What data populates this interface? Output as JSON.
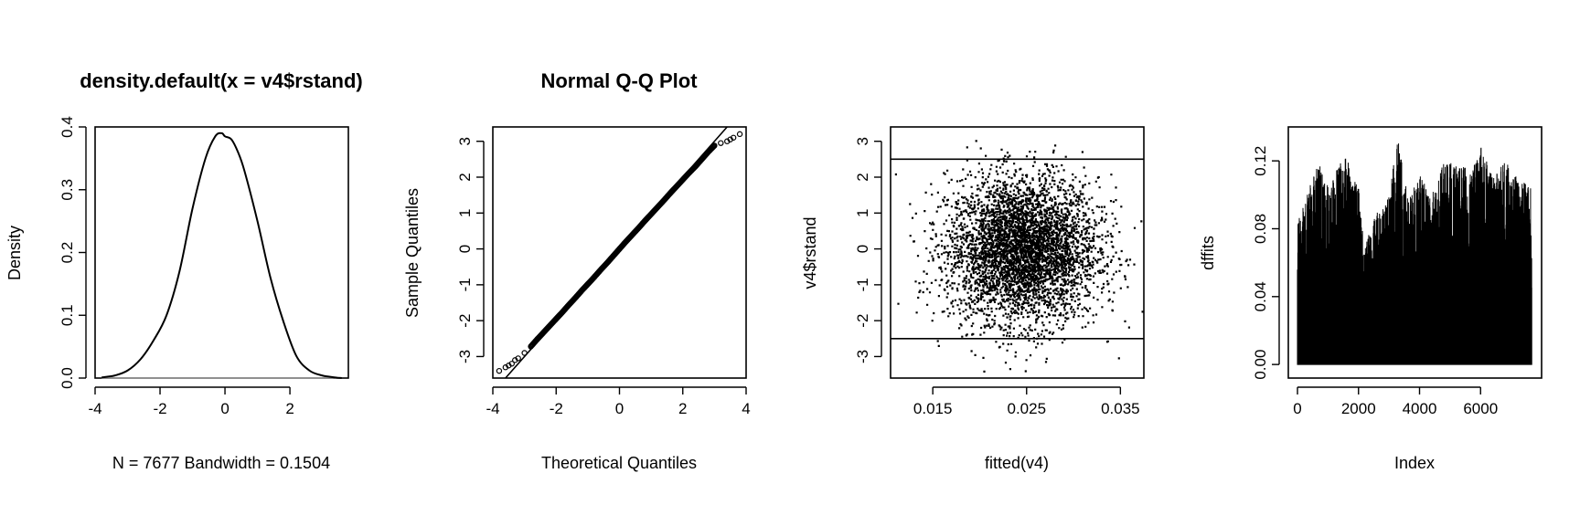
{
  "chart_data": [
    {
      "type": "line",
      "title": "density.default(x = v4$rstand)",
      "xlabel": "N = 7677   Bandwidth = 0.1504",
      "ylabel": "Density",
      "xlim": [
        -4.0,
        3.8
      ],
      "ylim": [
        0.0,
        0.4
      ],
      "x_ticks": [
        "-4",
        "-2",
        "0",
        "2"
      ],
      "y_ticks": [
        "0.0",
        "0.1",
        "0.2",
        "0.3",
        "0.4"
      ],
      "x": [
        -3.8,
        -3.4,
        -3.0,
        -2.6,
        -2.2,
        -1.8,
        -1.4,
        -1.0,
        -0.6,
        -0.3,
        -0.1,
        0.0,
        0.2,
        0.4,
        0.6,
        1.0,
        1.4,
        1.8,
        2.2,
        2.6,
        3.0,
        3.4,
        3.6
      ],
      "y": [
        0.001,
        0.004,
        0.012,
        0.03,
        0.06,
        0.1,
        0.17,
        0.27,
        0.35,
        0.385,
        0.39,
        0.385,
        0.38,
        0.36,
        0.33,
        0.25,
        0.16,
        0.09,
        0.035,
        0.012,
        0.004,
        0.001,
        0.0
      ],
      "grid": false
    },
    {
      "type": "scatter",
      "title": "Normal Q-Q Plot",
      "xlabel": "Theoretical Quantiles",
      "ylabel": "Sample Quantiles",
      "xlim": [
        -4.0,
        4.0
      ],
      "ylim": [
        -3.6,
        3.4
      ],
      "x_ticks": [
        "-4",
        "-2",
        "0",
        "2",
        "4"
      ],
      "y_ticks": [
        "-3",
        "-2",
        "-1",
        "0",
        "1",
        "2",
        "3"
      ],
      "reference_line": {
        "slope": 1.0,
        "intercept": 0.0
      },
      "x": [
        -3.8,
        -3.6,
        -3.5,
        -3.4,
        -3.3,
        -3.2,
        -3.0,
        -2.8,
        -2.6,
        -2.4,
        -2.2,
        -2.0,
        -1.8,
        -1.6,
        -1.4,
        -1.2,
        -1.0,
        -0.8,
        -0.6,
        -0.4,
        -0.2,
        0.0,
        0.2,
        0.4,
        0.6,
        0.8,
        1.0,
        1.2,
        1.4,
        1.6,
        1.8,
        2.0,
        2.2,
        2.4,
        2.6,
        2.8,
        3.0,
        3.2,
        3.4,
        3.5,
        3.6,
        3.8
      ],
      "y": [
        -3.4,
        -3.3,
        -3.25,
        -3.2,
        -3.1,
        -3.05,
        -2.9,
        -2.72,
        -2.52,
        -2.33,
        -2.14,
        -1.95,
        -1.76,
        -1.56,
        -1.37,
        -1.17,
        -0.98,
        -0.79,
        -0.59,
        -0.4,
        -0.2,
        0.0,
        0.2,
        0.39,
        0.58,
        0.78,
        0.97,
        1.16,
        1.35,
        1.55,
        1.74,
        1.93,
        2.12,
        2.3,
        2.5,
        2.7,
        2.88,
        2.95,
        3.0,
        3.05,
        3.1,
        3.2
      ],
      "grid": false
    },
    {
      "type": "scatter",
      "title": "",
      "xlabel": "fitted(v4)",
      "ylabel": "v4$rstand",
      "xlim": [
        0.0105,
        0.0375
      ],
      "ylim": [
        -3.6,
        3.4
      ],
      "x_ticks": [
        "0.015",
        "0.025",
        "0.035"
      ],
      "y_ticks": [
        "-3",
        "-2",
        "-1",
        "0",
        "1",
        "2",
        "3"
      ],
      "hlines": [
        2.5,
        -2.5
      ],
      "point_cloud": {
        "n": 7677,
        "x_center": 0.0245,
        "x_spread": 0.004,
        "y_center": 0.0,
        "y_spread": 1.0
      },
      "grid": false
    },
    {
      "type": "bar",
      "title": "",
      "xlabel": "Index",
      "ylabel": "dffits",
      "xlim": [
        -300,
        8000
      ],
      "ylim": [
        -0.008,
        0.14
      ],
      "x_ticks": [
        "0",
        "2000",
        "4000",
        "6000"
      ],
      "y_ticks": [
        "0.00",
        "0.04",
        "0.08",
        "0.12"
      ],
      "n": 7677,
      "envelope_x": [
        0,
        300,
        700,
        1000,
        1400,
        1600,
        1800,
        2000,
        2200,
        2600,
        3000,
        3300,
        3600,
        4000,
        4400,
        4800,
        5200,
        5600,
        6000,
        6400,
        6800,
        7200,
        7600
      ],
      "envelope_y": [
        0.085,
        0.1,
        0.12,
        0.105,
        0.12,
        0.126,
        0.11,
        0.105,
        0.07,
        0.09,
        0.1,
        0.135,
        0.1,
        0.112,
        0.1,
        0.12,
        0.12,
        0.115,
        0.13,
        0.11,
        0.12,
        0.11,
        0.105
      ],
      "grid": false
    }
  ]
}
